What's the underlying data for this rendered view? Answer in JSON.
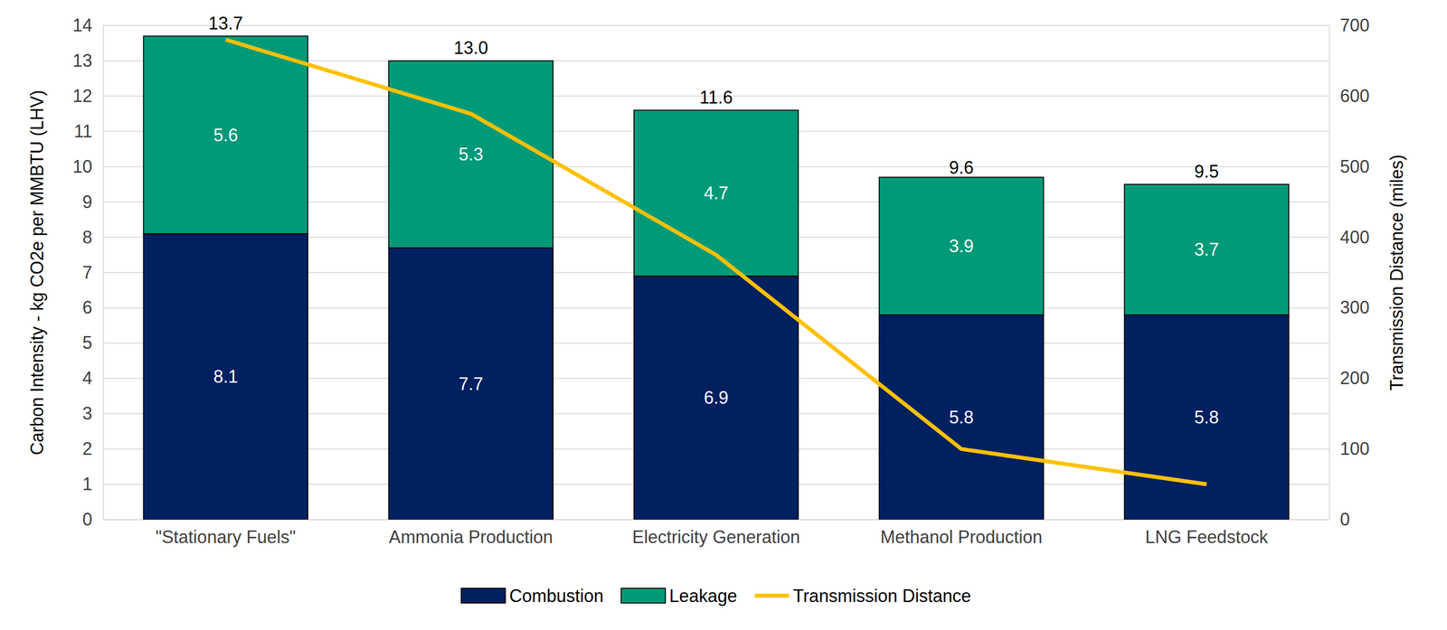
{
  "chart_data": {
    "type": "bar",
    "stacked": true,
    "grid": true,
    "legend": "bottom",
    "data_labels": true,
    "y_label": "Carbon Intensity - kg CO2e per MMBTU (LHV)",
    "y2_label": "Transmission Distance (miles)",
    "categories": [
      "\"Stationary Fuels\"",
      "Ammonia Production",
      "Electricity Generation",
      "Methanol Production",
      "LNG Feedstock"
    ],
    "series": [
      {
        "name": "Combustion",
        "type": "bar",
        "color": "#002060",
        "values": [
          8.1,
          7.7,
          6.9,
          5.8,
          5.8
        ]
      },
      {
        "name": "Leakage",
        "type": "bar",
        "color": "#009A78",
        "values": [
          5.6,
          5.3,
          4.7,
          3.9,
          3.7
        ]
      },
      {
        "name": "Transmission Distance",
        "type": "line",
        "axis": "y2",
        "color": "#FFC000",
        "values": [
          680,
          575,
          375,
          100,
          50
        ]
      }
    ],
    "totals": [
      13.7,
      13.0,
      11.6,
      9.6,
      9.5
    ],
    "total_labels": [
      "13.7",
      "13.0",
      "11.6",
      "9.6",
      "9.5"
    ],
    "ylim": [
      0,
      14
    ],
    "yticks": [
      0,
      1,
      2,
      3,
      4,
      5,
      6,
      7,
      8,
      9,
      10,
      11,
      12,
      13,
      14
    ],
    "y2lim": [
      0,
      700
    ],
    "y2ticks": [
      0,
      100,
      200,
      300,
      400,
      500,
      600,
      700
    ]
  }
}
